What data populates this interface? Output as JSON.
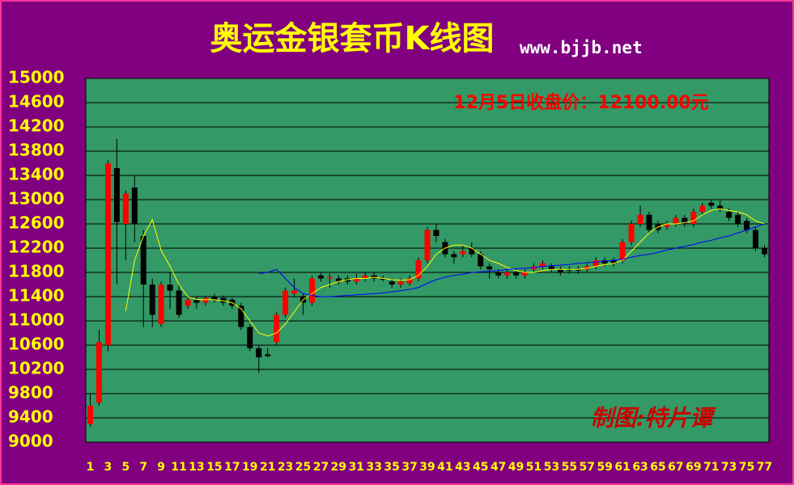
{
  "chart_data": {
    "type": "candlestick",
    "title": "奥运金银套币K线图",
    "subtitle": "www.bjjb.net",
    "annotation": "12月5日收盘价：12100.00元",
    "credit": "制图:特片谭",
    "categories": [
      "1",
      null,
      "3",
      null,
      "5",
      null,
      "7",
      null,
      "9",
      null,
      "11",
      null,
      "13",
      null,
      "15",
      null,
      "17",
      null,
      "19",
      null,
      "21",
      null,
      "23",
      null,
      "25",
      null,
      "27",
      null,
      "29",
      null,
      "31",
      null,
      "33",
      null,
      "35",
      null,
      "37",
      null,
      "39",
      null,
      "41",
      null,
      "43",
      null,
      "45",
      null,
      "47",
      null,
      "49",
      null,
      "51",
      null,
      "53",
      null,
      "55",
      null,
      "57",
      null,
      "59",
      null,
      "61",
      null,
      "63",
      null,
      "65",
      null,
      "67",
      null,
      "69",
      null,
      "71",
      null,
      "73",
      null,
      "75",
      null,
      "77"
    ],
    "open": [
      9300,
      9650,
      10600,
      13520,
      12600,
      13200,
      12400,
      11600,
      10950,
      11600,
      11500,
      11250,
      11350,
      11300,
      11400,
      11380,
      11350,
      11250,
      10900,
      10550,
      10450,
      10650,
      11100,
      11450,
      11400,
      11300,
      11750,
      11700,
      11700,
      11700,
      11650,
      11700,
      11750,
      11700,
      11650,
      11600,
      11620,
      11700,
      12000,
      12500,
      12300,
      12100,
      12100,
      12200,
      12100,
      11900,
      11800,
      11750,
      11800,
      11750,
      11850,
      11900,
      11900,
      11850,
      11850,
      11850,
      11850,
      11900,
      12000,
      12000,
      12000,
      12300,
      12600,
      12750,
      12600,
      12550,
      12600,
      12700,
      12600,
      12800,
      12950,
      12900,
      12800,
      12750,
      12650,
      12500,
      12200
    ],
    "high": [
      9800,
      10850,
      13650,
      14000,
      13150,
      13400,
      12500,
      11700,
      11650,
      11800,
      11600,
      11400,
      11400,
      11420,
      11450,
      11420,
      11380,
      11300,
      10950,
      10600,
      10550,
      11150,
      11550,
      11700,
      11450,
      11750,
      11800,
      11780,
      11750,
      11750,
      11780,
      11800,
      11800,
      11750,
      11700,
      11700,
      11750,
      12050,
      12550,
      12600,
      12350,
      12150,
      12250,
      12300,
      12150,
      11950,
      11850,
      11850,
      11850,
      11850,
      11950,
      12000,
      11950,
      11900,
      11900,
      11900,
      11950,
      12050,
      12050,
      12050,
      12350,
      12650,
      12900,
      12800,
      12650,
      12650,
      12750,
      12750,
      12850,
      12950,
      13000,
      13000,
      12850,
      12800,
      12700,
      12550,
      12250
    ],
    "low": [
      9250,
      9600,
      10500,
      11600,
      12000,
      12300,
      10900,
      10900,
      10900,
      11200,
      11050,
      11200,
      11200,
      11250,
      11300,
      11250,
      11200,
      10850,
      10500,
      10150,
      10400,
      10600,
      11050,
      11400,
      11100,
      11250,
      11650,
      11550,
      11600,
      11600,
      11600,
      11650,
      11650,
      11650,
      11550,
      11550,
      11580,
      11650,
      11950,
      12300,
      12050,
      11950,
      12050,
      12050,
      11850,
      11700,
      11700,
      11700,
      11700,
      11700,
      11800,
      11850,
      11800,
      11750,
      11780,
      11780,
      11800,
      11850,
      11900,
      11900,
      11950,
      12250,
      12550,
      12450,
      12450,
      12500,
      12550,
      12550,
      12550,
      12750,
      12850,
      12800,
      12650,
      12550,
      12450,
      12150,
      12050
    ],
    "close": [
      9600,
      10650,
      13600,
      12630,
      13100,
      12600,
      11600,
      11100,
      11600,
      11500,
      11100,
      11350,
      11300,
      11380,
      11350,
      11300,
      11250,
      10900,
      10550,
      10400,
      10420,
      11100,
      11500,
      11500,
      11300,
      11700,
      11700,
      11720,
      11650,
      11650,
      11700,
      11750,
      11700,
      11680,
      11600,
      11650,
      11700,
      12000,
      12500,
      12400,
      12100,
      12050,
      12150,
      12100,
      11900,
      11850,
      11750,
      11800,
      11750,
      11800,
      11900,
      11950,
      11850,
      11800,
      11830,
      11830,
      11900,
      12000,
      11950,
      11950,
      12300,
      12600,
      12750,
      12500,
      12500,
      12600,
      12700,
      12600,
      12800,
      12900,
      12900,
      12850,
      12700,
      12600,
      12500,
      12200,
      12100
    ],
    "up_color": "#ff0000",
    "down_color": "#000000",
    "lines": [
      {
        "color": "#ffff00",
        "values": [
          null,
          null,
          null,
          null,
          11160,
          12000,
          12400,
          12670,
          12160,
          11900,
          11600,
          11400,
          11350,
          11350,
          11350,
          11330,
          11300,
          11200,
          11000,
          10800,
          10750,
          10800,
          10950,
          11150,
          11350,
          11450,
          11550,
          11600,
          11650,
          11680,
          11700,
          11700,
          11720,
          11700,
          11680,
          11670,
          11680,
          11750,
          11900,
          12100,
          12200,
          12250,
          12250,
          12200,
          12100,
          12000,
          11950,
          11880,
          11830,
          11800,
          11800,
          11830,
          11850,
          11850,
          11850,
          11850,
          11870,
          11900,
          11930,
          11950,
          12000,
          12150,
          12300,
          12450,
          12550,
          12600,
          12600,
          12620,
          12650,
          12750,
          12820,
          12850,
          12820,
          12800,
          12750,
          12650,
          12600
        ]
      },
      {
        "color": "#0000ff",
        "values": [
          null,
          null,
          null,
          null,
          null,
          null,
          null,
          null,
          null,
          null,
          null,
          null,
          null,
          null,
          null,
          null,
          null,
          null,
          null,
          11780,
          11800,
          11850,
          11700,
          11550,
          11450,
          11420,
          11400,
          11400,
          11410,
          11420,
          11430,
          11440,
          11450,
          11460,
          11480,
          11500,
          11520,
          11550,
          11620,
          11680,
          11720,
          11750,
          11770,
          11800,
          11810,
          11820,
          11830,
          11850,
          11860,
          11870,
          11880,
          11900,
          11910,
          11920,
          11930,
          11950,
          11960,
          11970,
          11990,
          12000,
          12020,
          12050,
          12080,
          12100,
          12130,
          12170,
          12200,
          12230,
          12260,
          12300,
          12330,
          12370,
          12400,
          12450,
          12500,
          12550,
          12600
        ]
      }
    ],
    "ylim": [
      9000,
      15000
    ],
    "yticks": [
      9000,
      9400,
      9800,
      10200,
      10600,
      11000,
      11400,
      11800,
      12200,
      12600,
      13000,
      13400,
      13800,
      14200,
      14600,
      15000
    ],
    "grid": true,
    "background": "#339966",
    "frame_color": "#800080",
    "text_color": "#ffff00"
  }
}
